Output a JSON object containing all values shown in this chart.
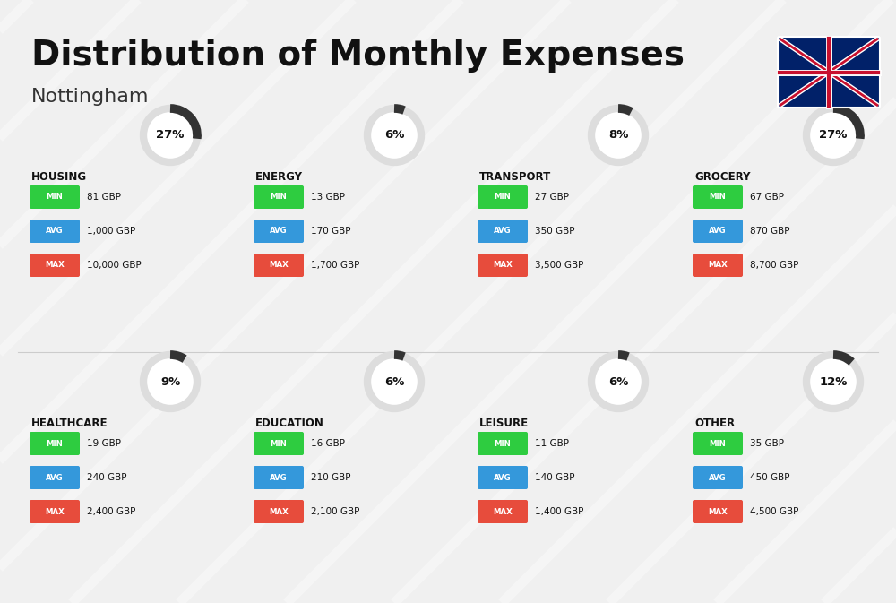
{
  "title": "Distribution of Monthly Expenses",
  "subtitle": "Nottingham",
  "bg_color": "#f0f0f0",
  "categories": [
    {
      "name": "HOUSING",
      "pct": 27,
      "min": "81 GBP",
      "avg": "1,000 GBP",
      "max": "10,000 GBP",
      "row": 0,
      "col": 0
    },
    {
      "name": "ENERGY",
      "pct": 6,
      "min": "13 GBP",
      "avg": "170 GBP",
      "max": "1,700 GBP",
      "row": 0,
      "col": 1
    },
    {
      "name": "TRANSPORT",
      "pct": 8,
      "min": "27 GBP",
      "avg": "350 GBP",
      "max": "3,500 GBP",
      "row": 0,
      "col": 2
    },
    {
      "name": "GROCERY",
      "pct": 27,
      "min": "67 GBP",
      "avg": "870 GBP",
      "max": "8,700 GBP",
      "row": 0,
      "col": 3
    },
    {
      "name": "HEALTHCARE",
      "pct": 9,
      "min": "19 GBP",
      "avg": "240 GBP",
      "max": "2,400 GBP",
      "row": 1,
      "col": 0
    },
    {
      "name": "EDUCATION",
      "pct": 6,
      "min": "16 GBP",
      "avg": "210 GBP",
      "max": "2,100 GBP",
      "row": 1,
      "col": 1
    },
    {
      "name": "LEISURE",
      "pct": 6,
      "min": "11 GBP",
      "avg": "140 GBP",
      "max": "1,400 GBP",
      "row": 1,
      "col": 2
    },
    {
      "name": "OTHER",
      "pct": 12,
      "min": "35 GBP",
      "avg": "450 GBP",
      "max": "4,500 GBP",
      "row": 1,
      "col": 3
    }
  ],
  "min_color": "#2ecc40",
  "avg_color": "#3498db",
  "max_color": "#e74c3c",
  "donut_color": "#333333",
  "donut_bg": "#dddddd",
  "label_color": "#ffffff",
  "name_color": "#111111"
}
